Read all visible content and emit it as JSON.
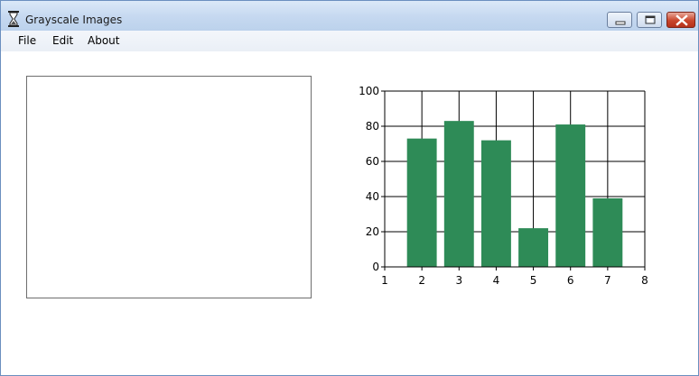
{
  "window": {
    "title": "Grayscale Images",
    "icon": "hourglass-icon"
  },
  "menu": {
    "items": [
      "File",
      "Edit",
      "About"
    ]
  },
  "colors": {
    "bar": "#2e8b57",
    "grid": "#000000"
  },
  "chart_data": {
    "type": "bar",
    "x": [
      2,
      3,
      4,
      5,
      6,
      7
    ],
    "values": [
      73,
      83,
      72,
      22,
      81,
      39
    ],
    "xlim": [
      1,
      8
    ],
    "ylim": [
      0,
      100
    ],
    "xticks": [
      1,
      2,
      3,
      4,
      5,
      6,
      7,
      8
    ],
    "yticks": [
      0,
      20,
      40,
      60,
      80,
      100
    ],
    "grid": true,
    "title": "",
    "xlabel": "",
    "ylabel": ""
  }
}
